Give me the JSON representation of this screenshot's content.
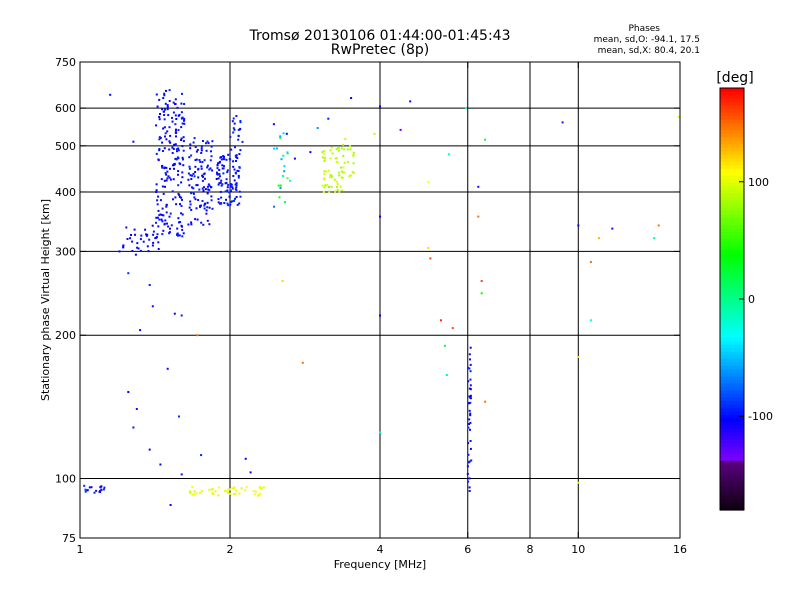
{
  "title_line1": "Tromsø 20130106 01:44:00-01:45:43",
  "title_line2": "RwPretec (8p)",
  "stats": {
    "heading": "Phases",
    "line_o": "mean, sd,O: -94.1, 17.5",
    "line_x": "mean, sd,X:  80.4, 20.1"
  },
  "colorbar": {
    "unit": "[deg]",
    "ticks": [
      {
        "value": 100,
        "label": "100"
      },
      {
        "value": 0,
        "label": "0"
      },
      {
        "value": -100,
        "label": "-100"
      }
    ],
    "range": [
      -180,
      180
    ]
  },
  "chart_data": {
    "type": "scatter",
    "xlabel": "Frequency [MHz]",
    "ylabel": "Stationary phase Virtual Height [km]",
    "xscale": "log",
    "yscale": "log",
    "xlim": [
      1,
      16
    ],
    "ylim": [
      75,
      750
    ],
    "xticks": [
      {
        "value": 1,
        "label": "1"
      },
      {
        "value": 2,
        "label": "2"
      },
      {
        "value": 4,
        "label": "4"
      },
      {
        "value": 6,
        "label": "6"
      },
      {
        "value": 8,
        "label": "8"
      },
      {
        "value": 10,
        "label": "10"
      },
      {
        "value": 16,
        "label": "16"
      }
    ],
    "xgrid": [
      2,
      4,
      6,
      8,
      10
    ],
    "yticks": [
      {
        "value": 75,
        "label": "75"
      },
      {
        "value": 100,
        "label": "100"
      },
      {
        "value": 200,
        "label": "200"
      },
      {
        "value": 300,
        "label": "300"
      },
      {
        "value": 400,
        "label": "400"
      },
      {
        "value": 500,
        "label": "500"
      },
      {
        "value": 600,
        "label": "600"
      },
      {
        "value": 750,
        "label": "750"
      }
    ],
    "ygrid": [
      100,
      200,
      300,
      400,
      500,
      600
    ],
    "grid": true,
    "clusters": [
      {
        "f": [
          1.0,
          1.12
        ],
        "h": [
          93,
          97
        ],
        "n": 18,
        "phase": [
          -120,
          -80
        ]
      },
      {
        "f": [
          1.22,
          1.45
        ],
        "h": [
          295,
          340
        ],
        "n": 35,
        "phase": [
          -110,
          -95
        ]
      },
      {
        "f": [
          1.42,
          1.62
        ],
        "h": [
          320,
          660
        ],
        "n": 200,
        "phase": [
          -108,
          -92
        ]
      },
      {
        "f": [
          1.65,
          1.85
        ],
        "h": [
          340,
          520
        ],
        "n": 110,
        "phase": [
          -106,
          -90
        ]
      },
      {
        "f": [
          1.88,
          2.1
        ],
        "h": [
          375,
          480
        ],
        "n": 95,
        "phase": [
          -106,
          -90
        ]
      },
      {
        "f": [
          2.0,
          2.12
        ],
        "h": [
          430,
          580
        ],
        "n": 25,
        "phase": [
          -100,
          -90
        ]
      },
      {
        "f": [
          2.45,
          2.65
        ],
        "h": [
          370,
          540
        ],
        "n": 20,
        "phase": [
          -100,
          70
        ]
      },
      {
        "f": [
          3.05,
          3.4
        ],
        "h": [
          400,
          500
        ],
        "n": 60,
        "phase": [
          80,
          105
        ]
      },
      {
        "f": [
          3.35,
          3.55
        ],
        "h": [
          430,
          520
        ],
        "n": 15,
        "phase": [
          85,
          95
        ]
      },
      {
        "f": [
          1.65,
          2.4
        ],
        "h": [
          92,
          96
        ],
        "n": 45,
        "phase": [
          95,
          115
        ]
      },
      {
        "f": [
          6.0,
          6.1
        ],
        "h": [
          93,
          190
        ],
        "n": 40,
        "phase": [
          -110,
          -90
        ]
      }
    ],
    "points": [
      [
        1.15,
        640,
        -100
      ],
      [
        1.28,
        510,
        -100
      ],
      [
        1.2,
        300,
        -100
      ],
      [
        1.25,
        270,
        -90
      ],
      [
        1.38,
        255,
        -95
      ],
      [
        1.4,
        230,
        -110
      ],
      [
        1.55,
        222,
        -100
      ],
      [
        1.6,
        220,
        -95
      ],
      [
        1.32,
        205,
        -100
      ],
      [
        1.5,
        170,
        -110
      ],
      [
        1.25,
        152,
        -100
      ],
      [
        1.3,
        140,
        -110
      ],
      [
        1.58,
        135,
        -90
      ],
      [
        1.28,
        128,
        -95
      ],
      [
        1.38,
        115,
        -100
      ],
      [
        1.45,
        107,
        -100
      ],
      [
        1.6,
        102,
        -110
      ],
      [
        1.75,
        112,
        -95
      ],
      [
        2.15,
        110,
        -100
      ],
      [
        2.2,
        103,
        -100
      ],
      [
        1.52,
        88,
        -100
      ],
      [
        2.45,
        555,
        -100
      ],
      [
        2.6,
        530,
        -100
      ],
      [
        2.7,
        470,
        -100
      ],
      [
        2.9,
        485,
        -100
      ],
      [
        3.15,
        570,
        -95
      ],
      [
        3.5,
        630,
        -100
      ],
      [
        3.0,
        545,
        -60
      ],
      [
        3.9,
        530,
        90
      ],
      [
        4.0,
        605,
        -110
      ],
      [
        4.4,
        540,
        -130
      ],
      [
        4.6,
        620,
        -100
      ],
      [
        4.0,
        355,
        -100
      ],
      [
        4.0,
        220,
        -100
      ],
      [
        5.0,
        420,
        110
      ],
      [
        5.0,
        305,
        120
      ],
      [
        5.05,
        290,
        160
      ],
      [
        5.3,
        215,
        170
      ],
      [
        5.4,
        190,
        20
      ],
      [
        5.45,
        165,
        -10
      ],
      [
        5.5,
        480,
        -20
      ],
      [
        5.6,
        207,
        160
      ],
      [
        5.95,
        600,
        -20
      ],
      [
        6.3,
        410,
        -110
      ],
      [
        6.3,
        355,
        150
      ],
      [
        6.4,
        260,
        160
      ],
      [
        6.4,
        245,
        40
      ],
      [
        6.5,
        515,
        20
      ],
      [
        6.5,
        145,
        150
      ],
      [
        4.0,
        125,
        -20
      ],
      [
        10.0,
        340,
        -100
      ],
      [
        10.0,
        180,
        120
      ],
      [
        10.6,
        285,
        150
      ],
      [
        10.6,
        215,
        -20
      ],
      [
        11.0,
        320,
        130
      ],
      [
        11.7,
        335,
        -110
      ],
      [
        14.2,
        320,
        0
      ],
      [
        14.5,
        340,
        150
      ],
      [
        15.9,
        575,
        100
      ],
      [
        9.3,
        560,
        -120
      ],
      [
        10.0,
        98,
        100
      ],
      [
        2.55,
        260,
        120
      ],
      [
        2.8,
        175,
        150
      ],
      [
        1.72,
        200,
        150
      ],
      [
        2.3,
        96,
        110
      ]
    ]
  }
}
